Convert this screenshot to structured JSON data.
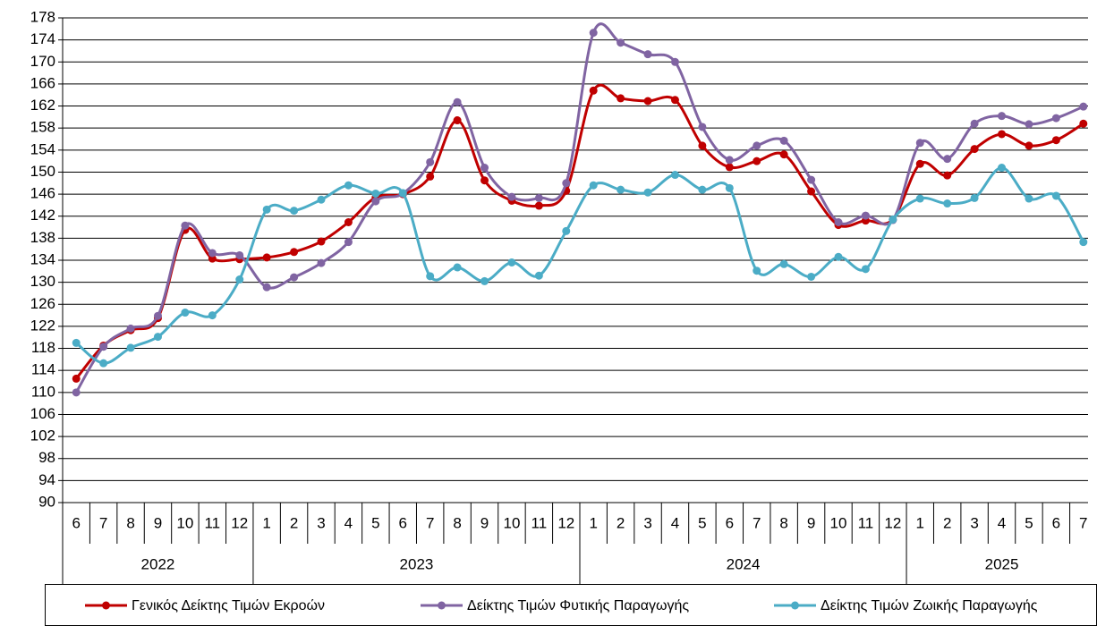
{
  "chart_data": {
    "type": "line",
    "categories": [
      "6",
      "7",
      "8",
      "9",
      "10",
      "11",
      "12",
      "1",
      "2",
      "3",
      "4",
      "5",
      "6",
      "7",
      "8",
      "9",
      "10",
      "11",
      "12",
      "1",
      "2",
      "3",
      "4",
      "5",
      "6",
      "7",
      "8",
      "9",
      "10",
      "11",
      "12",
      "1",
      "2",
      "3",
      "4",
      "5",
      "6",
      "7"
    ],
    "years": [
      "2022",
      "2023",
      "2024",
      "2025"
    ],
    "series": [
      {
        "name": "Γενικός Δείκτης Τιμών Εκροών",
        "color": "#c00000",
        "values": [
          112.5,
          118.5,
          121.3,
          123.5,
          139.5,
          134.3,
          134.2,
          134.5,
          135.5,
          137.4,
          140.9,
          145.4,
          146.0,
          149.2,
          159.4,
          148.5,
          144.8,
          143.9,
          146.6,
          164.8,
          163.4,
          162.9,
          163.1,
          154.8,
          150.9,
          152.0,
          153.2,
          146.5,
          140.4,
          141.2,
          141.4,
          151.5,
          149.4,
          154.2,
          156.9,
          154.8,
          155.8,
          158.8
        ]
      },
      {
        "name": "Δείκτης Τιμών Φυτικής Παραγωγής",
        "color": "#8064a2",
        "values": [
          110.0,
          118.3,
          121.6,
          123.9,
          140.3,
          135.3,
          134.9,
          129.1,
          130.9,
          133.5,
          137.3,
          144.7,
          146.1,
          151.8,
          162.7,
          150.8,
          145.5,
          145.3,
          148.0,
          175.3,
          173.5,
          171.4,
          170.0,
          158.2,
          152.2,
          154.8,
          155.7,
          148.6,
          140.9,
          142.1,
          141.3,
          155.3,
          152.4,
          158.8,
          160.2,
          158.7,
          159.8,
          161.9
        ]
      },
      {
        "name": "Δείκτης Τιμών Ζωικής Παραγωγής",
        "color": "#4bacc6",
        "values": [
          119.0,
          115.3,
          118.1,
          120.1,
          124.5,
          124.0,
          130.5,
          143.2,
          143.0,
          145.0,
          147.6,
          146.1,
          146.2,
          131.1,
          132.7,
          130.2,
          133.6,
          131.2,
          139.3,
          147.6,
          146.8,
          146.3,
          149.5,
          146.8,
          147.1,
          132.1,
          133.3,
          131.0,
          134.6,
          132.4,
          141.4,
          145.2,
          144.3,
          145.3,
          150.8,
          145.2,
          145.7,
          137.3
        ]
      }
    ],
    "ylim": [
      90,
      178
    ],
    "yticks": [
      90,
      94,
      98,
      102,
      106,
      110,
      114,
      118,
      122,
      126,
      130,
      134,
      138,
      142,
      146,
      150,
      154,
      158,
      162,
      166,
      170,
      174,
      178
    ],
    "grid": true
  }
}
